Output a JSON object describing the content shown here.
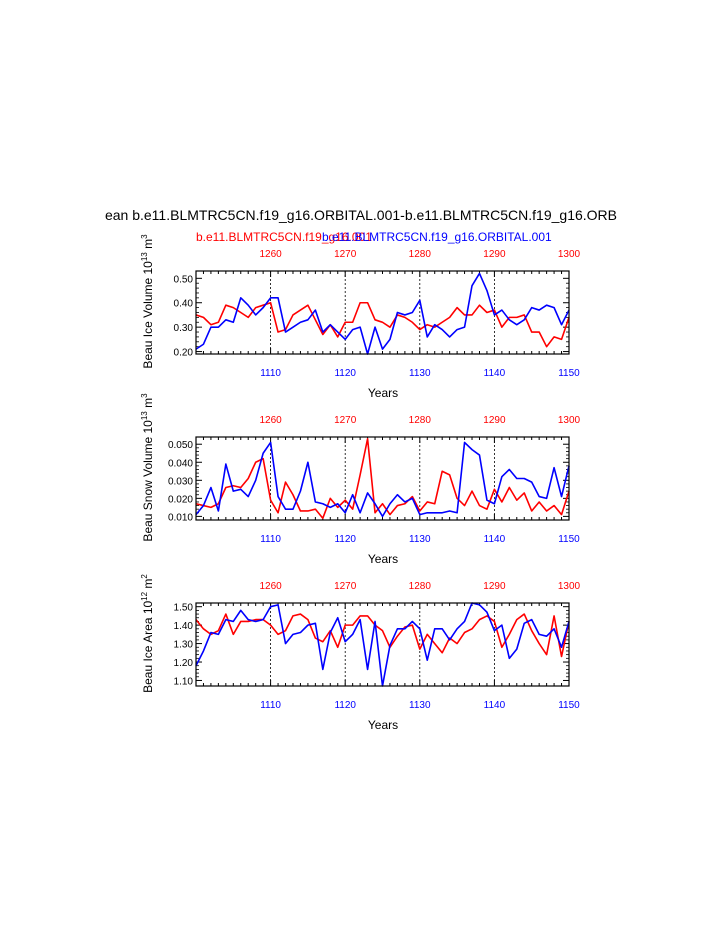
{
  "header": {
    "main_title": "ean b.e11.BLMTRC5CN.f19_g16.ORBITAL.001-b.e11.BLMTRC5CN.f19_g16.ORB",
    "case_red": "b.e11.BLMTRC5CN.f19_g16.001",
    "case_blue": "b.e11.BLMTRC5CN.f19_g16.ORBITAL.001"
  },
  "colors": {
    "red": "#ff0000",
    "blue": "#0000ff",
    "axis": "#000000"
  },
  "chart_data": [
    {
      "type": "line",
      "ylabel": "Beau Ice Volume 10",
      "ylabel_exp": "13",
      "ylabel_unit": " m",
      "ylabel_unit_exp": "3",
      "xlabel": "Years",
      "ylim": [
        0.19,
        0.53
      ],
      "yticks": [
        0.2,
        0.3,
        0.4,
        0.5
      ],
      "ytick_labels": [
        "0.20",
        "0.30",
        "0.40",
        "0.50"
      ],
      "top_axis": {
        "range": [
          1250,
          1300
        ],
        "ticks": [
          1260,
          1270,
          1280,
          1290,
          1300
        ],
        "labels": [
          "1260",
          "1270",
          "1280",
          "1290",
          "1300"
        ]
      },
      "bottom_axis": {
        "range": [
          1100,
          1150
        ],
        "ticks": [
          1110,
          1120,
          1130,
          1140,
          1150
        ],
        "labels": [
          "1110",
          "1120",
          "1130",
          "1140",
          "1150"
        ]
      },
      "series": [
        {
          "name": "b.e11.BLMTRC5CN.f19_g16.001",
          "color": "red",
          "x_axis": "top",
          "x": [
            1250,
            1251,
            1252,
            1253,
            1254,
            1255,
            1256,
            1257,
            1258,
            1259,
            1260,
            1261,
            1262,
            1263,
            1264,
            1265,
            1266,
            1267,
            1268,
            1269,
            1270,
            1271,
            1272,
            1273,
            1274,
            1275,
            1276,
            1277,
            1278,
            1279,
            1280,
            1281,
            1282,
            1283,
            1284,
            1285,
            1286,
            1287,
            1288,
            1289,
            1290,
            1291,
            1292,
            1293,
            1294,
            1295,
            1296,
            1297,
            1298,
            1299,
            1300
          ],
          "values": [
            0.35,
            0.34,
            0.31,
            0.32,
            0.39,
            0.38,
            0.36,
            0.34,
            0.38,
            0.39,
            0.4,
            0.28,
            0.29,
            0.35,
            0.37,
            0.39,
            0.33,
            0.27,
            0.31,
            0.26,
            0.32,
            0.32,
            0.4,
            0.4,
            0.33,
            0.32,
            0.3,
            0.35,
            0.34,
            0.32,
            0.29,
            0.31,
            0.3,
            0.32,
            0.34,
            0.38,
            0.35,
            0.35,
            0.39,
            0.36,
            0.37,
            0.3,
            0.34,
            0.34,
            0.35,
            0.28,
            0.28,
            0.22,
            0.26,
            0.25,
            0.34
          ]
        },
        {
          "name": "b.e11.BLMTRC5CN.f19_g16.ORBITAL.001",
          "color": "blue",
          "x_axis": "bottom",
          "x": [
            1100,
            1101,
            1102,
            1103,
            1104,
            1105,
            1106,
            1107,
            1108,
            1109,
            1110,
            1111,
            1112,
            1113,
            1114,
            1115,
            1116,
            1117,
            1118,
            1119,
            1120,
            1121,
            1122,
            1123,
            1124,
            1125,
            1126,
            1127,
            1128,
            1129,
            1130,
            1131,
            1132,
            1133,
            1134,
            1135,
            1136,
            1137,
            1138,
            1139,
            1140,
            1141,
            1142,
            1143,
            1144,
            1145,
            1146,
            1147,
            1148,
            1149,
            1150
          ],
          "values": [
            0.21,
            0.23,
            0.3,
            0.3,
            0.33,
            0.32,
            0.42,
            0.39,
            0.35,
            0.38,
            0.42,
            0.42,
            0.28,
            0.3,
            0.32,
            0.33,
            0.37,
            0.28,
            0.31,
            0.28,
            0.25,
            0.29,
            0.3,
            0.19,
            0.3,
            0.21,
            0.25,
            0.36,
            0.35,
            0.36,
            0.41,
            0.26,
            0.31,
            0.29,
            0.26,
            0.29,
            0.3,
            0.47,
            0.52,
            0.45,
            0.35,
            0.37,
            0.33,
            0.31,
            0.33,
            0.38,
            0.37,
            0.39,
            0.38,
            0.31,
            0.37
          ]
        }
      ]
    },
    {
      "type": "line",
      "ylabel": "Beau Snow Volume 10",
      "ylabel_exp": "13",
      "ylabel_unit": " m",
      "ylabel_unit_exp": "3",
      "xlabel": "Years",
      "ylim": [
        0.008,
        0.054
      ],
      "yticks": [
        0.01,
        0.02,
        0.03,
        0.04,
        0.05
      ],
      "ytick_labels": [
        "0.010",
        "0.020",
        "0.030",
        "0.040",
        "0.050"
      ],
      "top_axis": {
        "range": [
          1250,
          1300
        ],
        "ticks": [
          1260,
          1270,
          1280,
          1290,
          1300
        ],
        "labels": [
          "1260",
          "1270",
          "1280",
          "1290",
          "1300"
        ]
      },
      "bottom_axis": {
        "range": [
          1100,
          1150
        ],
        "ticks": [
          1110,
          1120,
          1130,
          1140,
          1150
        ],
        "labels": [
          "1110",
          "1120",
          "1130",
          "1140",
          "1150"
        ]
      },
      "series": [
        {
          "name": "b.e11.BLMTRC5CN.f19_g16.001",
          "color": "red",
          "x_axis": "top",
          "x": [
            1250,
            1251,
            1252,
            1253,
            1254,
            1255,
            1256,
            1257,
            1258,
            1259,
            1260,
            1261,
            1262,
            1263,
            1264,
            1265,
            1266,
            1267,
            1268,
            1269,
            1270,
            1271,
            1272,
            1273,
            1274,
            1275,
            1276,
            1277,
            1278,
            1279,
            1280,
            1281,
            1282,
            1283,
            1284,
            1285,
            1286,
            1287,
            1288,
            1289,
            1290,
            1291,
            1292,
            1293,
            1294,
            1295,
            1296,
            1297,
            1298,
            1299,
            1300
          ],
          "values": [
            0.017,
            0.016,
            0.015,
            0.017,
            0.026,
            0.027,
            0.026,
            0.031,
            0.04,
            0.042,
            0.019,
            0.012,
            0.029,
            0.022,
            0.013,
            0.013,
            0.014,
            0.009,
            0.02,
            0.015,
            0.019,
            0.014,
            0.033,
            0.053,
            0.012,
            0.017,
            0.011,
            0.016,
            0.017,
            0.021,
            0.013,
            0.018,
            0.017,
            0.035,
            0.033,
            0.02,
            0.016,
            0.024,
            0.016,
            0.014,
            0.025,
            0.018,
            0.026,
            0.019,
            0.023,
            0.013,
            0.018,
            0.013,
            0.016,
            0.011,
            0.024
          ]
        },
        {
          "name": "b.e11.BLMTRC5CN.f19_g16.ORBITAL.001",
          "color": "blue",
          "x_axis": "bottom",
          "x": [
            1100,
            1101,
            1102,
            1103,
            1104,
            1105,
            1106,
            1107,
            1108,
            1109,
            1110,
            1111,
            1112,
            1113,
            1114,
            1115,
            1116,
            1117,
            1118,
            1119,
            1120,
            1121,
            1122,
            1123,
            1124,
            1125,
            1126,
            1127,
            1128,
            1129,
            1130,
            1131,
            1132,
            1133,
            1134,
            1135,
            1136,
            1137,
            1138,
            1139,
            1140,
            1141,
            1142,
            1143,
            1144,
            1145,
            1146,
            1147,
            1148,
            1149,
            1150
          ],
          "values": [
            0.011,
            0.016,
            0.026,
            0.013,
            0.039,
            0.024,
            0.025,
            0.021,
            0.03,
            0.045,
            0.051,
            0.021,
            0.014,
            0.014,
            0.024,
            0.04,
            0.018,
            0.017,
            0.015,
            0.017,
            0.012,
            0.022,
            0.012,
            0.023,
            0.017,
            0.01,
            0.017,
            0.022,
            0.018,
            0.02,
            0.011,
            0.012,
            0.012,
            0.012,
            0.013,
            0.012,
            0.051,
            0.047,
            0.044,
            0.019,
            0.017,
            0.032,
            0.036,
            0.031,
            0.031,
            0.029,
            0.021,
            0.02,
            0.037,
            0.021,
            0.038
          ]
        }
      ]
    },
    {
      "type": "line",
      "ylabel": "Beau Ice Area 10",
      "ylabel_exp": "12",
      "ylabel_unit": " m",
      "ylabel_unit_exp": "2",
      "xlabel": "Years",
      "ylim": [
        1.07,
        1.52
      ],
      "yticks": [
        1.1,
        1.2,
        1.3,
        1.4,
        1.5
      ],
      "ytick_labels": [
        "1.10",
        "1.20",
        "1.30",
        "1.40",
        "1.50"
      ],
      "top_axis": {
        "range": [
          1250,
          1300
        ],
        "ticks": [
          1260,
          1270,
          1280,
          1290,
          1300
        ],
        "labels": [
          "1260",
          "1270",
          "1280",
          "1290",
          "1300"
        ]
      },
      "bottom_axis": {
        "range": [
          1100,
          1150
        ],
        "ticks": [
          1110,
          1120,
          1130,
          1140,
          1150
        ],
        "labels": [
          "1110",
          "1120",
          "1130",
          "1140",
          "1150"
        ]
      },
      "series": [
        {
          "name": "b.e11.BLMTRC5CN.f19_g16.001",
          "color": "red",
          "x_axis": "top",
          "x": [
            1250,
            1251,
            1252,
            1253,
            1254,
            1255,
            1256,
            1257,
            1258,
            1259,
            1260,
            1261,
            1262,
            1263,
            1264,
            1265,
            1266,
            1267,
            1268,
            1269,
            1270,
            1271,
            1272,
            1273,
            1274,
            1275,
            1276,
            1277,
            1278,
            1279,
            1280,
            1281,
            1282,
            1283,
            1284,
            1285,
            1286,
            1287,
            1288,
            1289,
            1290,
            1291,
            1292,
            1293,
            1294,
            1295,
            1296,
            1297,
            1298,
            1299,
            1300
          ],
          "values": [
            1.43,
            1.38,
            1.35,
            1.37,
            1.46,
            1.35,
            1.42,
            1.42,
            1.43,
            1.43,
            1.4,
            1.35,
            1.37,
            1.45,
            1.46,
            1.43,
            1.33,
            1.31,
            1.37,
            1.28,
            1.4,
            1.4,
            1.45,
            1.45,
            1.4,
            1.37,
            1.28,
            1.34,
            1.39,
            1.4,
            1.27,
            1.35,
            1.3,
            1.25,
            1.33,
            1.3,
            1.36,
            1.38,
            1.43,
            1.45,
            1.42,
            1.28,
            1.35,
            1.43,
            1.46,
            1.37,
            1.3,
            1.24,
            1.45,
            1.23,
            1.42
          ]
        },
        {
          "name": "b.e11.BLMTRC5CN.f19_g16.ORBITAL.001",
          "color": "blue",
          "x_axis": "bottom",
          "x": [
            1100,
            1101,
            1102,
            1103,
            1104,
            1105,
            1106,
            1107,
            1108,
            1109,
            1110,
            1111,
            1112,
            1113,
            1114,
            1115,
            1116,
            1117,
            1118,
            1119,
            1120,
            1121,
            1122,
            1123,
            1124,
            1125,
            1126,
            1127,
            1128,
            1129,
            1130,
            1131,
            1132,
            1133,
            1134,
            1135,
            1136,
            1137,
            1138,
            1139,
            1140,
            1141,
            1142,
            1143,
            1144,
            1145,
            1146,
            1147,
            1148,
            1149,
            1150
          ],
          "values": [
            1.18,
            1.26,
            1.36,
            1.35,
            1.43,
            1.42,
            1.48,
            1.43,
            1.42,
            1.43,
            1.5,
            1.51,
            1.3,
            1.35,
            1.36,
            1.4,
            1.41,
            1.16,
            1.36,
            1.44,
            1.31,
            1.35,
            1.43,
            1.16,
            1.42,
            1.07,
            1.29,
            1.38,
            1.38,
            1.42,
            1.38,
            1.21,
            1.38,
            1.38,
            1.32,
            1.38,
            1.42,
            1.52,
            1.51,
            1.47,
            1.37,
            1.4,
            1.22,
            1.27,
            1.41,
            1.43,
            1.35,
            1.34,
            1.38,
            1.28,
            1.42
          ]
        }
      ]
    }
  ]
}
